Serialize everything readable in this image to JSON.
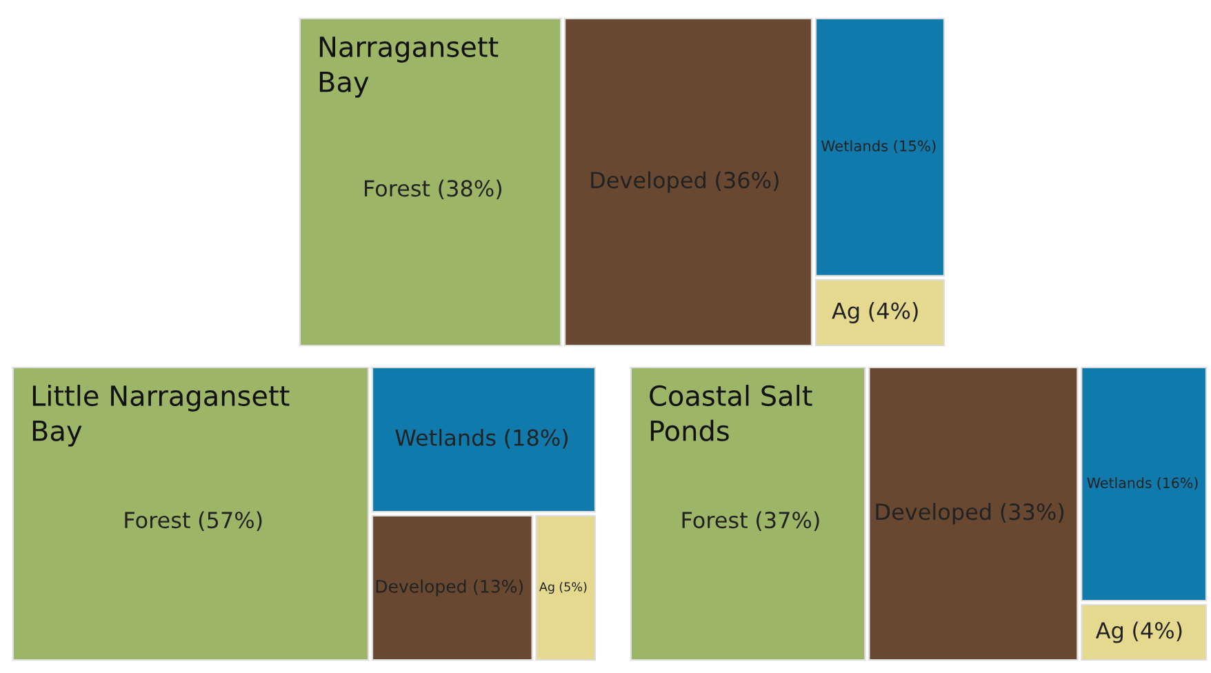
{
  "chart_data": [
    {
      "type": "other",
      "title": "Narragansett Bay",
      "categories": [
        "Forest",
        "Developed",
        "Wetlands",
        "Ag"
      ],
      "values": [
        38,
        36,
        15,
        4
      ],
      "value_labels": [
        "(38%)",
        "(36%)",
        "(15%)",
        "(4%)"
      ],
      "colors": [
        "#9db567",
        "#684830",
        "#0f7aab",
        "#e5d98f"
      ]
    },
    {
      "type": "other",
      "title": "Little Narragansett Bay",
      "categories": [
        "Forest",
        "Wetlands",
        "Developed",
        "Ag"
      ],
      "values": [
        57,
        18,
        13,
        5
      ],
      "value_labels": [
        "(57%)",
        "(18%)",
        "(13%)",
        "(5%)"
      ],
      "colors": [
        "#9db567",
        "#0f7aab",
        "#684830",
        "#e5d98f"
      ]
    },
    {
      "type": "other",
      "title": "Coastal Salt Ponds",
      "categories": [
        "Forest",
        "Developed",
        "Wetlands",
        "Ag"
      ],
      "values": [
        37,
        33,
        16,
        4
      ],
      "value_labels": [
        "(37%)",
        "(33%)",
        "(16%)",
        "(4%)"
      ],
      "colors": [
        "#9db567",
        "#684830",
        "#0f7aab",
        "#e5d98f"
      ]
    }
  ]
}
